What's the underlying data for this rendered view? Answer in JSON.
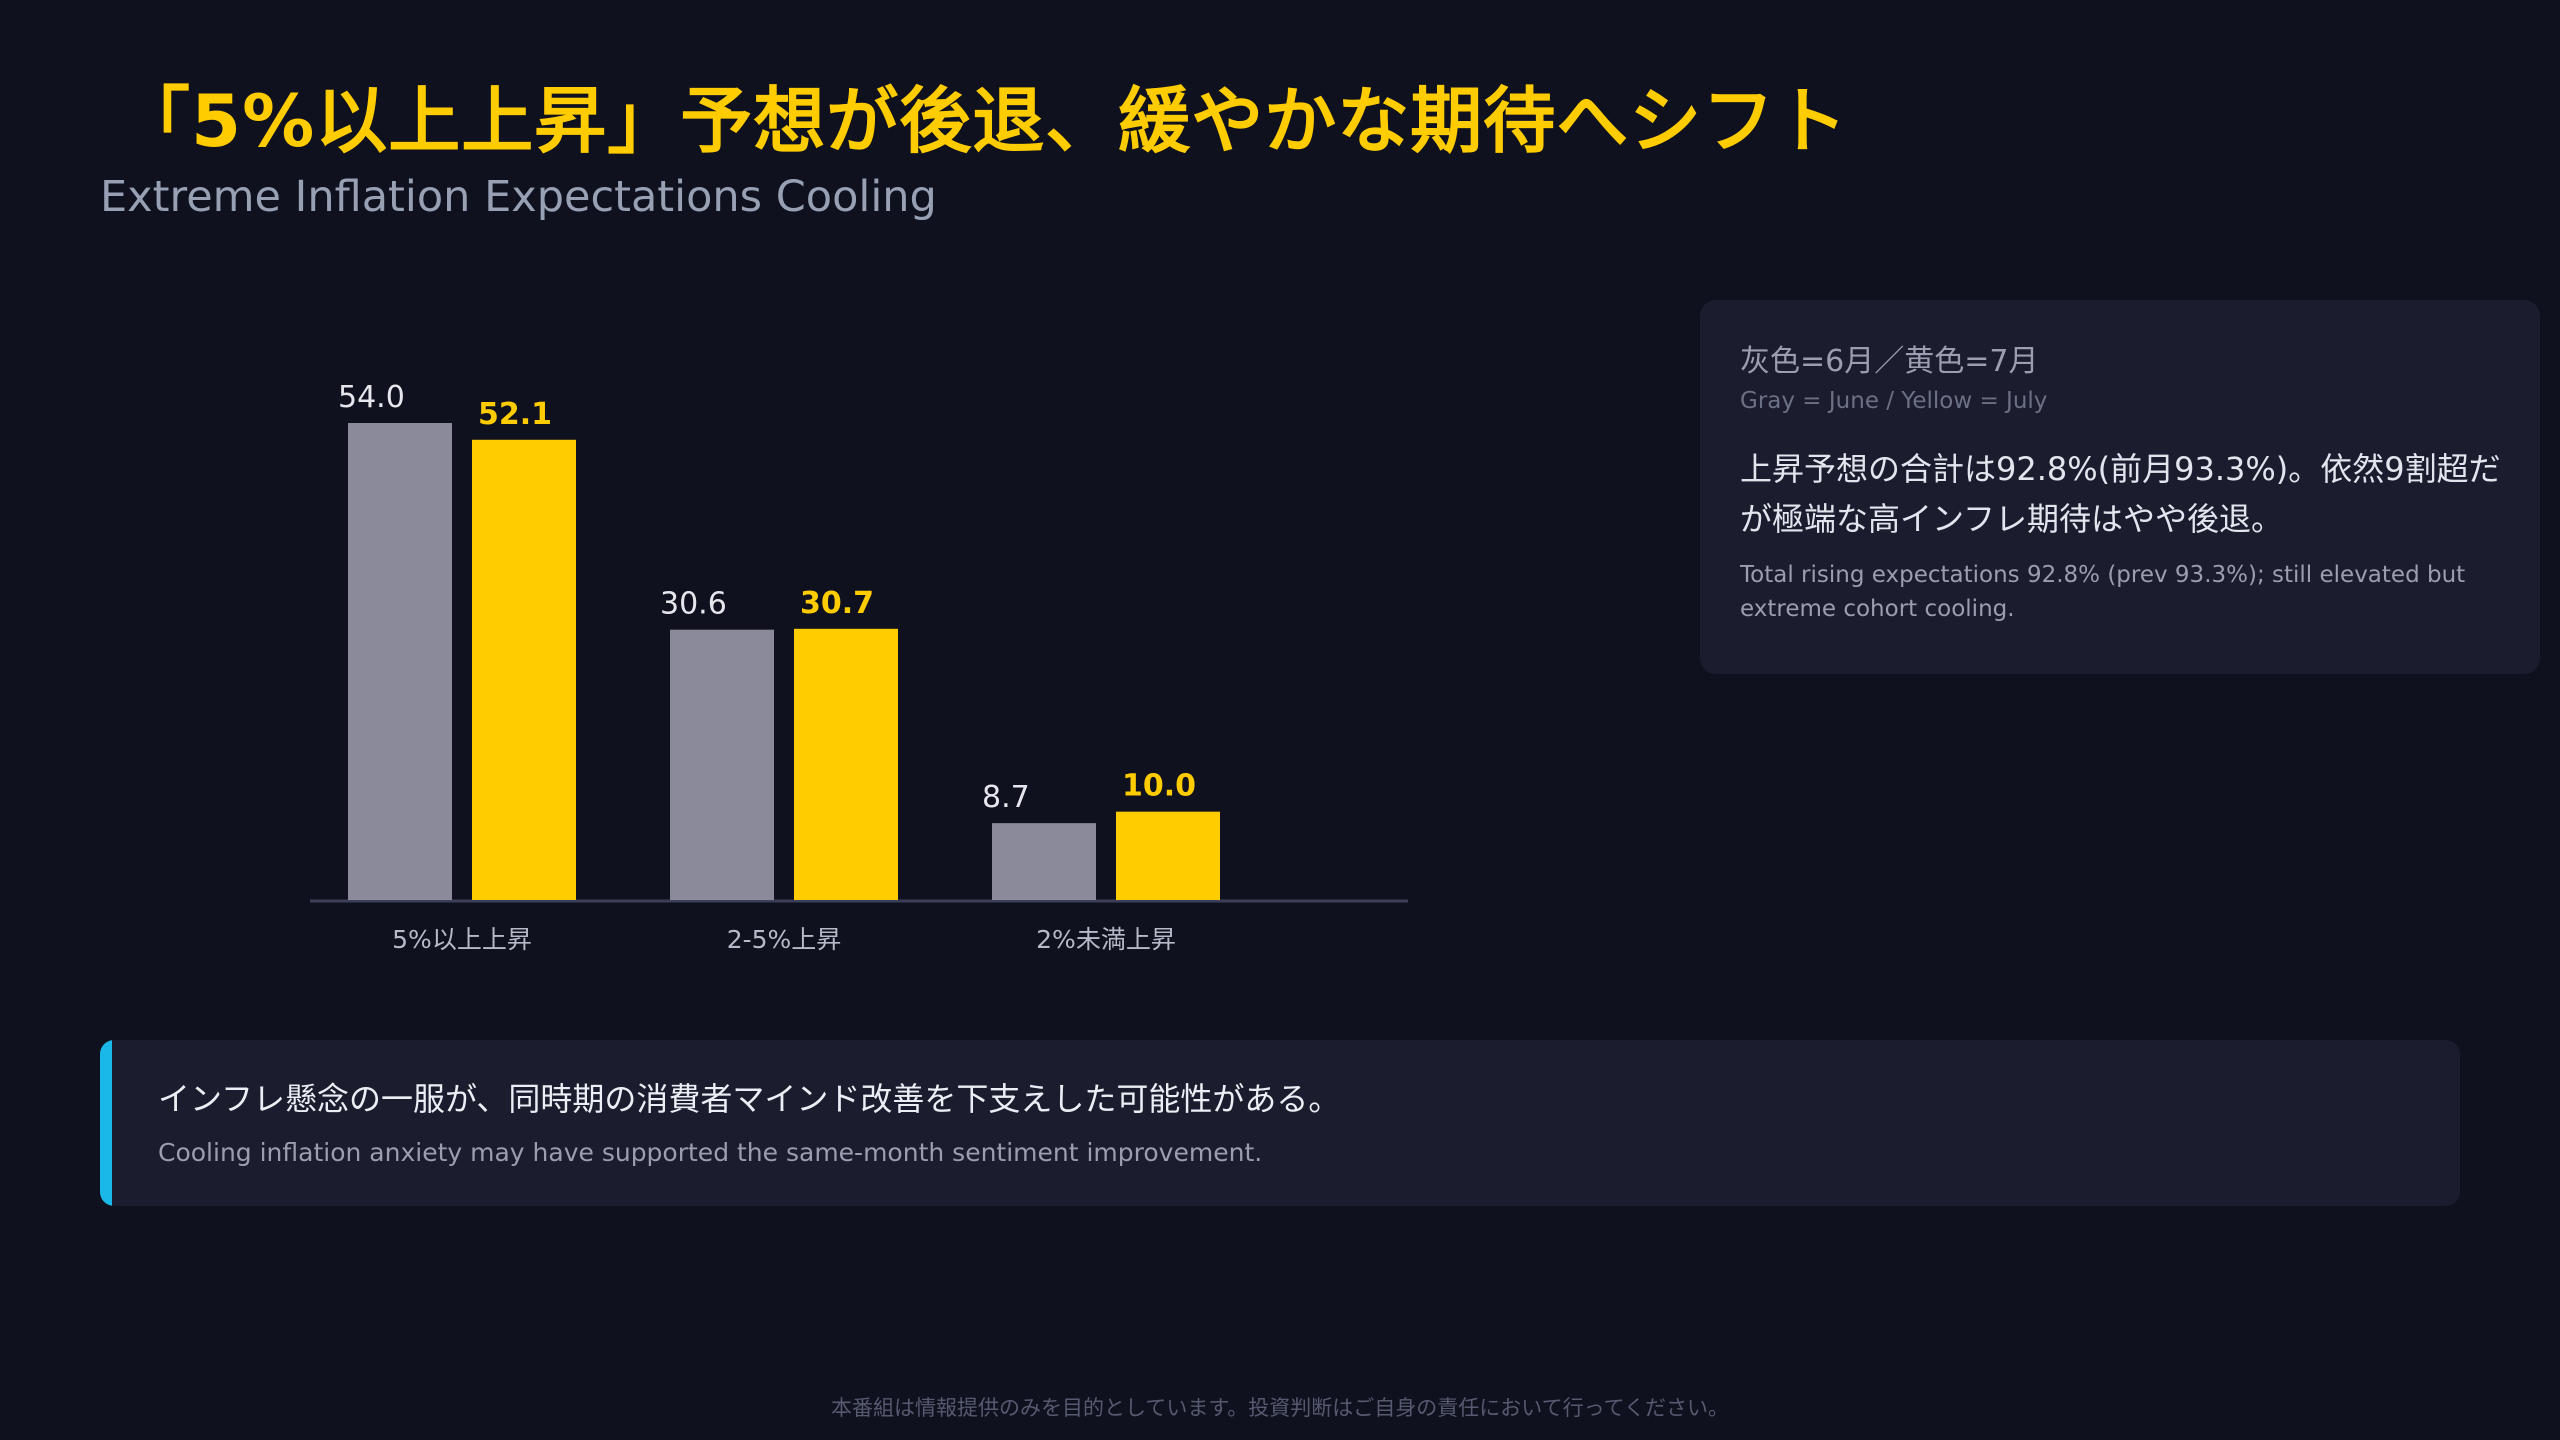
{
  "header": {
    "title": "「5%以上上昇」予想が後退、緩やかな期待へシフト",
    "subtitle": "Extreme Inflation Expectations Cooling"
  },
  "chart_data": {
    "type": "bar",
    "categories": [
      "5%以上上昇",
      "2-5%上昇",
      "2%未満上昇"
    ],
    "series": [
      {
        "values": [
          54.0,
          30.6,
          8.7
        ],
        "color": "#8b8a9b"
      },
      {
        "values": [
          52.1,
          30.7,
          10.0
        ],
        "color": "#ffcc00"
      }
    ],
    "ylim": [
      0,
      60
    ],
    "grid": false,
    "title": "",
    "xlabel": "",
    "ylabel": ""
  },
  "legend_card": {
    "legend_jp": "灰色=6月／黄色=7月",
    "legend_en": "Gray = June / Yellow = July",
    "summary_jp": "上昇予想の合計は92.8%(前月93.3%)。依然9割超だが極端な高インフレ期待はやや後退。",
    "summary_en": "Total rising expectations 92.8% (prev 93.3%); still elevated but extreme cohort cooling."
  },
  "insight": {
    "jp": "インフレ懸念の一服が、同時期の消費者マインド改善を下支えした可能性がある。",
    "en": "Cooling inflation anxiety may have supported the same-month sentiment improvement.",
    "accent_color": "#19b8e8"
  },
  "footer": {
    "disclaimer": "本番組は情報提供のみを目的としています。投資判断はご自身の責任において行ってください。"
  }
}
